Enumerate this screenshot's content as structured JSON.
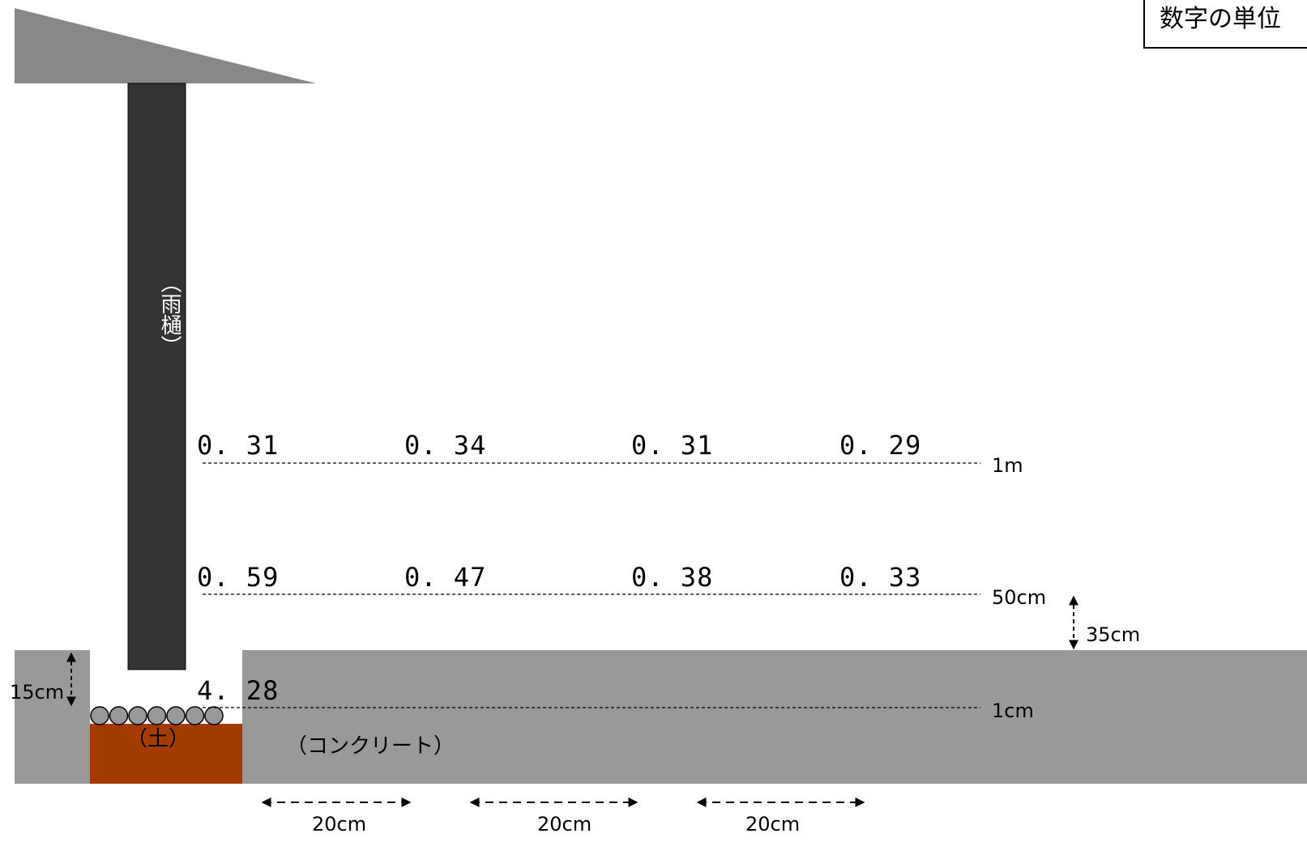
{
  "unit_note": "数字の単位",
  "labels": {
    "gutter": "（雨樋）",
    "soil": "（土）",
    "concrete": "（コンクリート）"
  },
  "heights": {
    "h1m": "1m",
    "h50cm": "50cm",
    "h1cm": "1cm"
  },
  "readings": {
    "row_1m": [
      "0. 31",
      "0. 34",
      "0. 31",
      "0. 29"
    ],
    "row_50cm": [
      "0. 59",
      "0. 47",
      "0. 38",
      "0. 33"
    ],
    "row_1cm": [
      "4. 28"
    ]
  },
  "dimensions": {
    "pit_depth": "15cm",
    "step_height": "35cm",
    "spacing": [
      "20cm",
      "20cm",
      "20cm"
    ]
  },
  "colors": {
    "roof": "#888888",
    "gutter": "#333333",
    "concrete": "#999999",
    "soil": "#a33a00",
    "gravel": "#999999"
  }
}
